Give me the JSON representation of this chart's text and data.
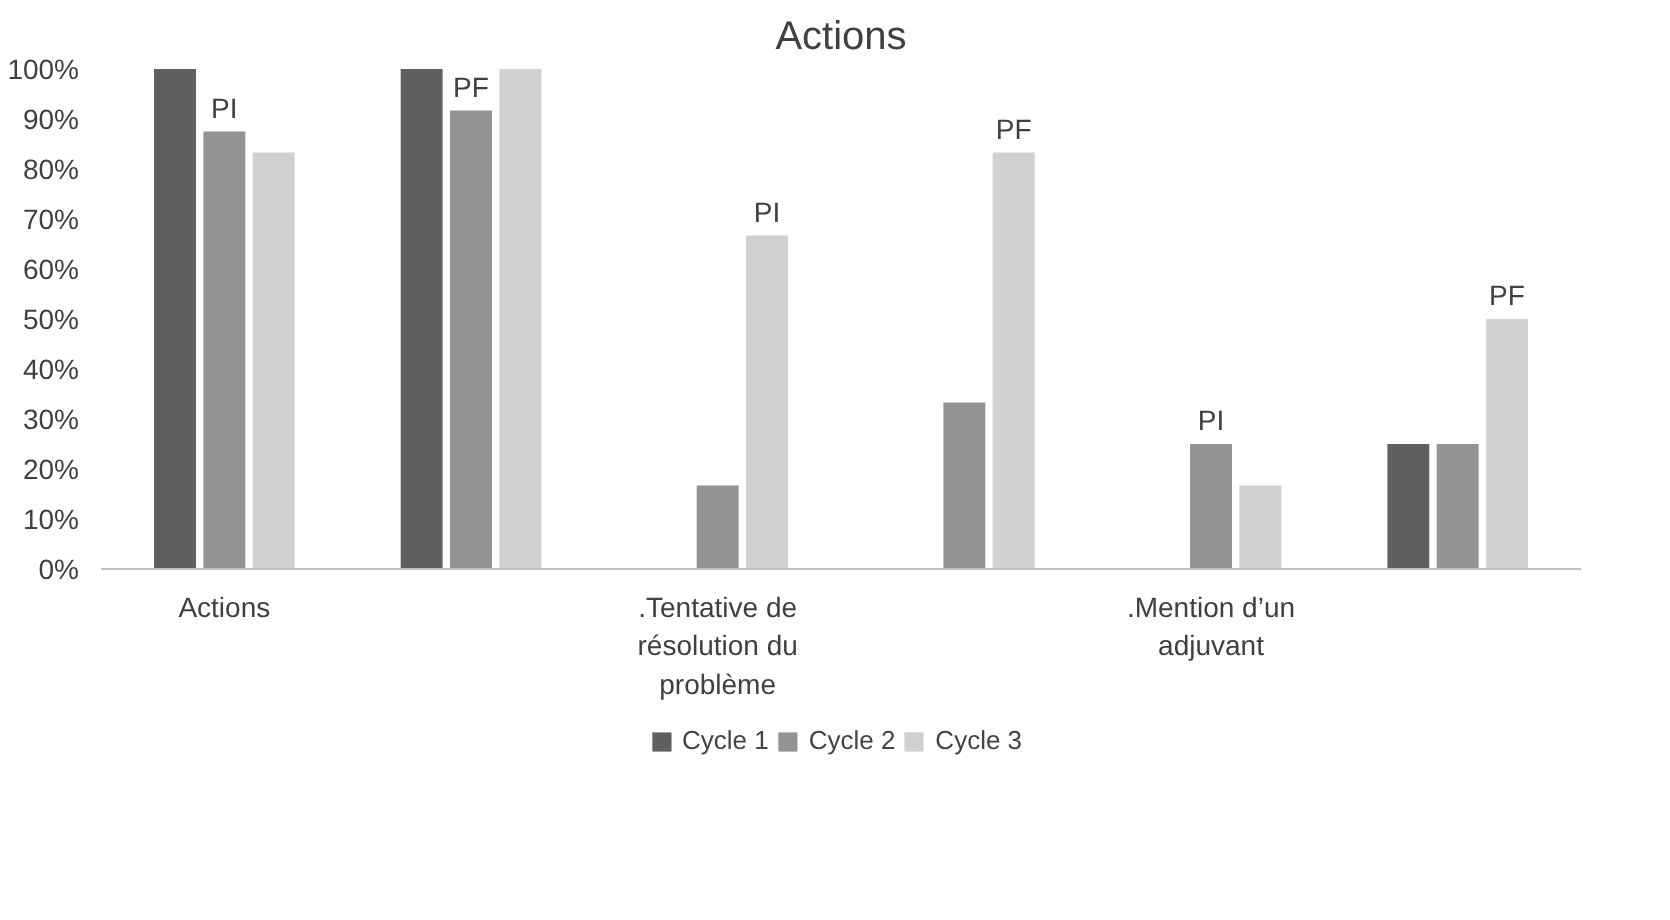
{
  "chart_data": {
    "type": "bar",
    "title": "Actions",
    "categories": [
      "Actions",
      null,
      ".Tentative de résolution du problème",
      null,
      ".Mention d’un adjuvant",
      null
    ],
    "series": [
      {
        "name": "Cycle 1",
        "color": "#606060",
        "values": [
          100,
          100,
          0,
          0,
          0,
          25
        ]
      },
      {
        "name": "Cycle 2",
        "color": "#939393",
        "values": [
          87.5,
          91.7,
          16.7,
          33.3,
          25,
          25
        ]
      },
      {
        "name": "Cycle 3",
        "color": "#d0d0d0",
        "values": [
          83.3,
          100,
          66.7,
          83.3,
          16.7,
          50
        ]
      }
    ],
    "ylim": [
      0,
      100
    ],
    "yticks": [
      {
        "value": 0,
        "label": "0%"
      },
      {
        "value": 10,
        "label": "10%"
      },
      {
        "value": 20,
        "label": "20%"
      },
      {
        "value": 30,
        "label": "30%"
      },
      {
        "value": 40,
        "label": "40%"
      },
      {
        "value": 50,
        "label": "50%"
      },
      {
        "value": 60,
        "label": "60%"
      },
      {
        "value": 70,
        "label": "70%"
      },
      {
        "value": 80,
        "label": "80%"
      },
      {
        "value": 90,
        "label": "90%"
      },
      {
        "value": 100,
        "label": "100%"
      }
    ],
    "annotations": [
      "PI",
      "PF",
      "PI",
      "PF",
      "PI",
      "PF"
    ],
    "grid": false,
    "legend": "bottom"
  }
}
